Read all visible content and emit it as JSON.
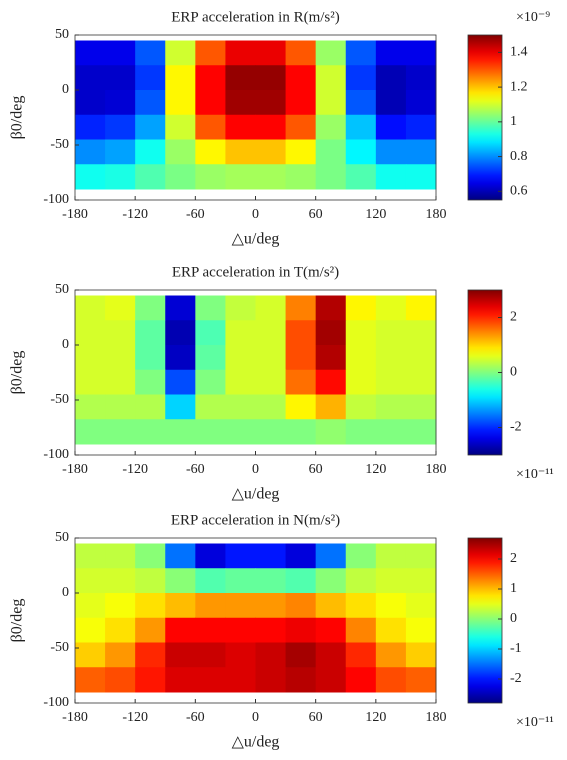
{
  "chart_data": [
    {
      "type": "heatmap",
      "title": "ERP acceleration in R(m/s²)",
      "xlabel": "△u/deg",
      "ylabel": "β0/deg",
      "colormap": "jet",
      "exponent": "×10⁻⁹",
      "exponent_position": "top",
      "x": [
        -165,
        -135,
        -105,
        -75,
        -45,
        -15,
        15,
        45,
        75,
        105,
        135,
        165
      ],
      "y": [
        33.75,
        11.25,
        -11.25,
        -33.75,
        -56.25,
        -78.75
      ],
      "values": [
        [
          0.65,
          0.65,
          0.75,
          1.1,
          1.3,
          1.4,
          1.4,
          1.3,
          1.05,
          0.75,
          0.65,
          0.65
        ],
        [
          0.62,
          0.62,
          0.72,
          1.15,
          1.38,
          1.48,
          1.48,
          1.38,
          1.1,
          0.72,
          0.6,
          0.62
        ],
        [
          0.62,
          0.63,
          0.75,
          1.15,
          1.38,
          1.47,
          1.47,
          1.38,
          1.1,
          0.75,
          0.6,
          0.63
        ],
        [
          0.7,
          0.72,
          0.82,
          1.1,
          1.3,
          1.38,
          1.38,
          1.3,
          1.05,
          0.85,
          0.68,
          0.7
        ],
        [
          0.8,
          0.82,
          0.92,
          1.05,
          1.15,
          1.2,
          1.2,
          1.15,
          1.02,
          0.9,
          0.8,
          0.8
        ],
        [
          0.92,
          0.93,
          0.98,
          1.02,
          1.05,
          1.06,
          1.06,
          1.05,
          1.02,
          0.98,
          0.92,
          0.92
        ]
      ],
      "xlim": [
        -180,
        180
      ],
      "ylim": [
        -100,
        50
      ],
      "xticks": [
        -180,
        -120,
        -60,
        0,
        60,
        120,
        180
      ],
      "yticks": [
        -100,
        -50,
        0,
        50
      ],
      "clim": [
        0.55,
        1.5
      ],
      "cticks": [
        0.6,
        0.8,
        1,
        1.2,
        1.4
      ]
    },
    {
      "type": "heatmap",
      "title": "ERP acceleration in T(m/s²)",
      "xlabel": "△u/deg",
      "ylabel": "β0/deg",
      "colormap": "jet",
      "exponent": "×10⁻¹¹",
      "exponent_position": "bottom",
      "x": [
        -165,
        -135,
        -105,
        -75,
        -45,
        -15,
        15,
        45,
        75,
        105,
        135,
        165
      ],
      "y": [
        33.75,
        11.25,
        -11.25,
        -33.75,
        -56.25,
        -78.75
      ],
      "values": [
        [
          0.5,
          0.6,
          0,
          -2.5,
          0,
          0.4,
          0.5,
          1.5,
          2.7,
          0.8,
          0.6,
          0.8
        ],
        [
          0.5,
          0.5,
          -0.2,
          -2.7,
          -0.3,
          0.5,
          0.5,
          1.8,
          2.8,
          0.6,
          0.5,
          0.5
        ],
        [
          0.5,
          0.5,
          -0.2,
          -2.6,
          -0.2,
          0.5,
          0.5,
          1.8,
          2.7,
          0.6,
          0.5,
          0.5
        ],
        [
          0.5,
          0.5,
          0,
          -1.8,
          0,
          0.5,
          0.5,
          1.6,
          2.2,
          0.6,
          0.5,
          0.5
        ],
        [
          0.3,
          0.3,
          0.3,
          -1,
          0.3,
          0.3,
          0.3,
          0.8,
          1.2,
          0.4,
          0.3,
          0.3
        ],
        [
          0,
          0,
          0,
          0,
          0,
          0,
          0,
          0,
          0.1,
          0,
          0,
          0
        ]
      ],
      "xlim": [
        -180,
        180
      ],
      "ylim": [
        -100,
        50
      ],
      "xticks": [
        -180,
        -120,
        -60,
        0,
        60,
        120,
        180
      ],
      "yticks": [
        -100,
        -50,
        0,
        50
      ],
      "clim": [
        -3,
        3
      ],
      "cticks": [
        -2,
        0,
        2
      ]
    },
    {
      "type": "heatmap",
      "title": "ERP acceleration in N(m/s²)",
      "xlabel": "△u/deg",
      "ylabel": "β0/deg",
      "colormap": "jet",
      "exponent": "×10⁻¹¹",
      "exponent_position": "bottom",
      "x": [
        -165,
        -135,
        -105,
        -75,
        -45,
        -15,
        15,
        45,
        75,
        105,
        135,
        165
      ],
      "y": [
        33.75,
        11.25,
        -11.25,
        -33.75,
        -56.25,
        -78.75
      ],
      "values": [
        [
          0.3,
          0.3,
          0,
          -1.5,
          -2.3,
          -2,
          -2,
          -2.3,
          -1.5,
          0,
          0.3,
          0.3
        ],
        [
          0.4,
          0.4,
          0.3,
          0,
          -0.3,
          -0.2,
          -0.2,
          -0.3,
          0,
          0.3,
          0.4,
          0.4
        ],
        [
          0.5,
          0.6,
          0.8,
          1,
          1.2,
          1.2,
          1.2,
          1.3,
          1,
          0.8,
          0.6,
          0.5
        ],
        [
          0.6,
          0.8,
          1.2,
          2,
          2,
          2,
          2,
          2.1,
          2,
          1.3,
          0.8,
          0.6
        ],
        [
          0.9,
          1.2,
          1.8,
          2.3,
          2.3,
          2.2,
          2.3,
          2.5,
          2.3,
          1.8,
          1.2,
          0.9
        ],
        [
          1.5,
          1.6,
          1.9,
          2.2,
          2.2,
          2.2,
          2.3,
          2.4,
          2.3,
          2,
          1.6,
          1.5
        ]
      ],
      "xlim": [
        -180,
        180
      ],
      "ylim": [
        -100,
        50
      ],
      "xticks": [
        -180,
        -120,
        -60,
        0,
        60,
        120,
        180
      ],
      "yticks": [
        -100,
        -50,
        0,
        50
      ],
      "clim": [
        -2.8,
        2.7
      ],
      "cticks": [
        -2,
        -1,
        0,
        1,
        2
      ]
    }
  ]
}
